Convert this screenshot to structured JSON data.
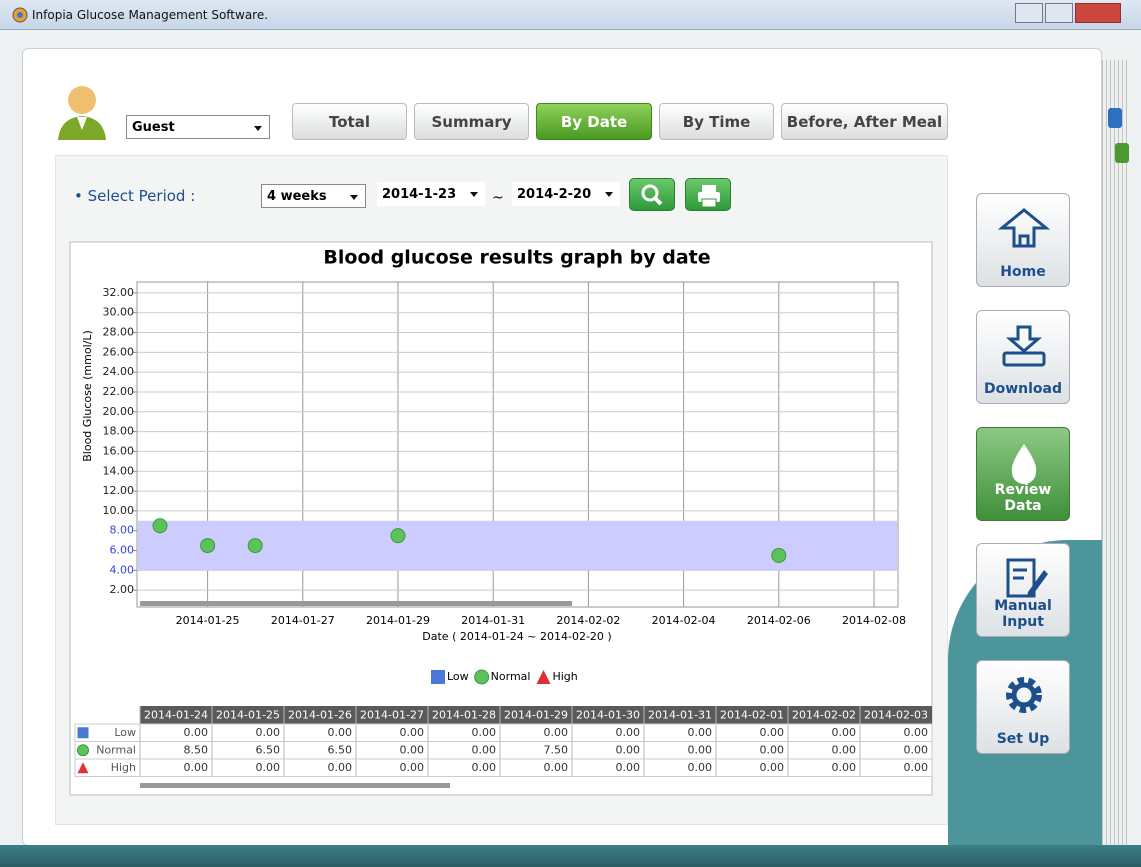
{
  "window": {
    "title": "Infopia Glucose Management Software."
  },
  "user": {
    "selected": "Guest"
  },
  "tabs": [
    {
      "label": "Total"
    },
    {
      "label": "Summary"
    },
    {
      "label": "By Date",
      "active": true
    },
    {
      "label": "By Time"
    },
    {
      "label": "Before, After Meal"
    }
  ],
  "period": {
    "label": "• Select Period :",
    "range": "4 weeks",
    "from": "2014-1-23",
    "separator": "~",
    "to": "2014-2-20"
  },
  "side_nav": [
    {
      "label": "Home"
    },
    {
      "label": "Download"
    },
    {
      "label": "Review Data",
      "active": true
    },
    {
      "label": "Manual Input"
    },
    {
      "label": "Set Up"
    }
  ],
  "chart_data": {
    "type": "scatter",
    "title": "Blood glucose results graph by date",
    "x_label": "Date ( 2014-01-24 ~ 2014-02-20 )",
    "y_label": "Blood Glucose (mmol/L)",
    "xlim": [
      "2014-01-24",
      "2014-02-08"
    ],
    "xticks": [
      "2014-01-25",
      "2014-01-27",
      "2014-01-29",
      "2014-01-31",
      "2014-02-02",
      "2014-02-04",
      "2014-02-06",
      "2014-02-08"
    ],
    "ylim": [
      0.3,
      33.1
    ],
    "yticks": [
      {
        "value": 2,
        "label": "2.00"
      },
      {
        "value": 4,
        "label": "4.00"
      },
      {
        "value": 6,
        "label": "6.00"
      },
      {
        "value": 8,
        "label": "8.00"
      },
      {
        "value": 10,
        "label": "10.00"
      },
      {
        "value": 12,
        "label": "12.00"
      },
      {
        "value": 14,
        "label": "14.00"
      },
      {
        "value": 16,
        "label": "16.00"
      },
      {
        "value": 18,
        "label": "18.00"
      },
      {
        "value": 20,
        "label": "20.00"
      },
      {
        "value": 22,
        "label": "22.00"
      },
      {
        "value": 24,
        "label": "24.00"
      },
      {
        "value": 26,
        "label": "26.00"
      },
      {
        "value": 28,
        "label": "28.00"
      },
      {
        "value": 30,
        "label": "30.00"
      },
      {
        "value": 32,
        "label": "32.00"
      }
    ],
    "grid": true,
    "legend": "bottom",
    "normal_range": [
      4,
      9
    ],
    "normal_range_color": "#ccccff",
    "series": [
      {
        "name": "Low",
        "color": "#4a78d8",
        "marker": "square",
        "x": [],
        "values": []
      },
      {
        "name": "Normal",
        "color": "#5cc35c",
        "marker": "circle",
        "x": [
          "2014-01-24",
          "2014-01-25",
          "2014-01-26",
          "2014-01-29",
          "2014-02-06"
        ],
        "values": [
          8.5,
          6.5,
          6.5,
          7.5,
          5.5
        ]
      },
      {
        "name": "High",
        "color": "#e03030",
        "marker": "triangle",
        "x": [],
        "values": []
      }
    ]
  },
  "table": {
    "columns": [
      "2014-01-24",
      "2014-01-25",
      "2014-01-26",
      "2014-01-27",
      "2014-01-28",
      "2014-01-29",
      "2014-01-30",
      "2014-01-31",
      "2014-02-01",
      "2014-02-02",
      "2014-02-03"
    ],
    "rows": [
      {
        "label": "Low",
        "values": [
          "0.00",
          "0.00",
          "0.00",
          "0.00",
          "0.00",
          "0.00",
          "0.00",
          "0.00",
          "0.00",
          "0.00",
          "0.00"
        ]
      },
      {
        "label": "Normal",
        "values": [
          "8.50",
          "6.50",
          "6.50",
          "0.00",
          "0.00",
          "7.50",
          "0.00",
          "0.00",
          "0.00",
          "0.00",
          "0.00"
        ]
      },
      {
        "label": "High",
        "values": [
          "0.00",
          "0.00",
          "0.00",
          "0.00",
          "0.00",
          "0.00",
          "0.00",
          "0.00",
          "0.00",
          "0.00",
          "0.00"
        ]
      }
    ]
  }
}
